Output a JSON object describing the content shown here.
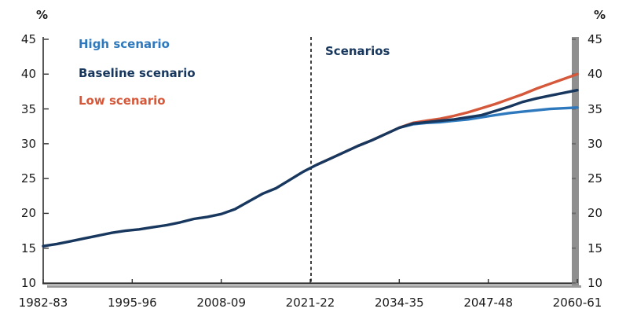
{
  "chart_data": {
    "type": "line",
    "title": "",
    "unit_label_left": "%",
    "unit_label_right": "%",
    "ylim": [
      10,
      45
    ],
    "y_ticks": [
      10,
      15,
      20,
      25,
      30,
      35,
      40,
      45
    ],
    "x_range_years": [
      1982,
      2060
    ],
    "x_tick_labels": [
      "1982-83",
      "1995-96",
      "2008-09",
      "2021-22",
      "2034-35",
      "2047-48",
      "2060-61"
    ],
    "grid": "off",
    "legend_position": "top-left",
    "annotation": {
      "label": "Scenarios",
      "x_year": 2021,
      "line_style": "dashed"
    },
    "series": [
      {
        "name": "High scenario",
        "color": "#2E79BD",
        "x": [
          2022,
          2024,
          2026,
          2028,
          2030,
          2032,
          2034,
          2036,
          2038,
          2040,
          2042,
          2044,
          2046,
          2048,
          2050,
          2052,
          2054,
          2056,
          2058,
          2060
        ],
        "values": [
          27.0,
          27.9,
          28.8,
          29.7,
          30.5,
          31.4,
          32.3,
          32.8,
          33.0,
          33.1,
          33.3,
          33.5,
          33.8,
          34.1,
          34.4,
          34.6,
          34.8,
          35.0,
          35.1,
          35.2
        ]
      },
      {
        "name": "Baseline scenario",
        "color": "#17375E",
        "x": [
          1982,
          1984,
          1986,
          1988,
          1990,
          1992,
          1994,
          1996,
          1998,
          2000,
          2002,
          2004,
          2006,
          2008,
          2010,
          2012,
          2014,
          2016,
          2018,
          2020,
          2022,
          2024,
          2026,
          2028,
          2030,
          2032,
          2034,
          2036,
          2038,
          2040,
          2042,
          2044,
          2046,
          2048,
          2050,
          2052,
          2054,
          2056,
          2058,
          2060
        ],
        "values": [
          15.3,
          15.6,
          16.0,
          16.4,
          16.8,
          17.2,
          17.5,
          17.7,
          18.0,
          18.3,
          18.7,
          19.2,
          19.5,
          19.9,
          20.6,
          21.7,
          22.8,
          23.6,
          24.8,
          26.0,
          27.0,
          27.9,
          28.8,
          29.7,
          30.5,
          31.4,
          32.3,
          32.9,
          33.1,
          33.3,
          33.5,
          33.8,
          34.1,
          34.7,
          35.3,
          36.0,
          36.5,
          36.9,
          37.3,
          37.7
        ]
      },
      {
        "name": "Low scenario",
        "color": "#D5583A",
        "x": [
          2022,
          2024,
          2026,
          2028,
          2030,
          2032,
          2034,
          2036,
          2038,
          2040,
          2042,
          2044,
          2046,
          2048,
          2050,
          2052,
          2054,
          2056,
          2058,
          2060
        ],
        "values": [
          27.0,
          27.9,
          28.8,
          29.7,
          30.5,
          31.4,
          32.3,
          33.0,
          33.3,
          33.6,
          34.0,
          34.5,
          35.1,
          35.7,
          36.4,
          37.1,
          37.9,
          38.6,
          39.3,
          40.0
        ]
      }
    ],
    "axis_colors": {
      "axis_line": "#2e2e2e",
      "shadow_gray": "#9a9a9a",
      "right_bar_gray": "#8f8f8f",
      "right_bar_notch": "#6b6b6b",
      "divider_line": "#111111",
      "tick_label": "#1b1b1b"
    }
  }
}
